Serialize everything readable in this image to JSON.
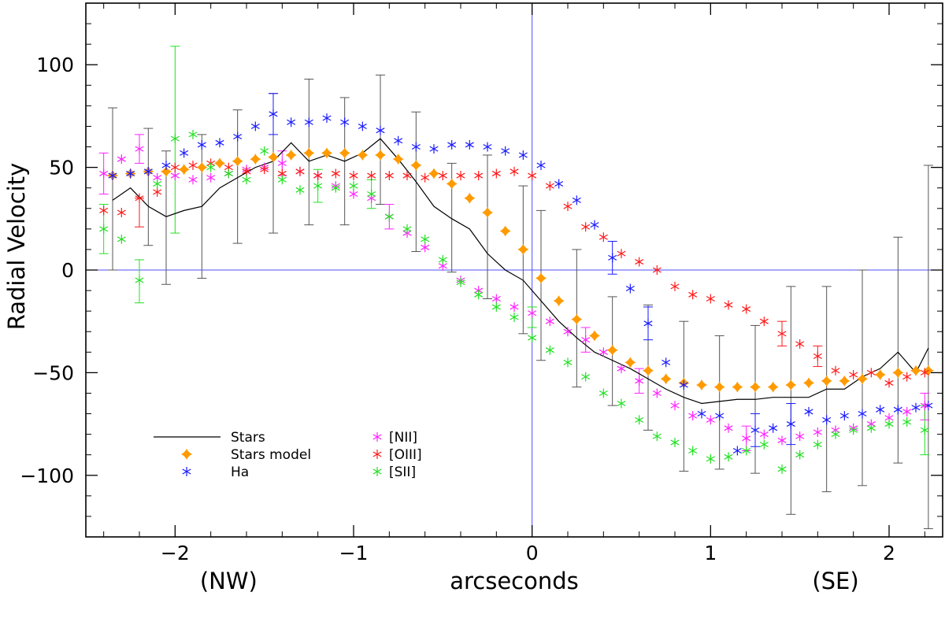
{
  "chart_data": {
    "type": "scatter",
    "title": "",
    "xlabel": "arcseconds",
    "ylabel": "Radial Velocity",
    "xlim": [
      -2.5,
      2.3
    ],
    "ylim": [
      -130,
      130
    ],
    "xticks": [
      -2,
      -1,
      0,
      1,
      2
    ],
    "xtick_labels": [
      "−2",
      "−1",
      "0",
      "1",
      "2"
    ],
    "yticks": [
      -100,
      -50,
      0,
      50,
      100
    ],
    "ytick_labels": [
      "−100",
      "−50",
      "0",
      "50",
      "100"
    ],
    "direction_labels": [
      {
        "text": "(NW)",
        "x": -1.7
      },
      {
        "text": "(SE)",
        "x": 1.7
      }
    ],
    "reference_lines": {
      "x": 0,
      "y": 0,
      "color": "#4f4fff"
    },
    "legend_position": "bottom-left",
    "series": [
      {
        "name": "Stars",
        "kind": "line",
        "color": "#000000",
        "x": [
          -2.35,
          -2.25,
          -2.15,
          -2.05,
          -1.95,
          -1.85,
          -1.75,
          -1.65,
          -1.55,
          -1.45,
          -1.35,
          -1.25,
          -1.15,
          -1.05,
          -0.95,
          -0.85,
          -0.75,
          -0.65,
          -0.55,
          -0.45,
          -0.35,
          -0.25,
          -0.15,
          -0.05,
          0.05,
          0.15,
          0.25,
          0.35,
          0.45,
          0.55,
          0.65,
          0.75,
          0.85,
          0.95,
          1.05,
          1.15,
          1.25,
          1.35,
          1.45,
          1.55,
          1.65,
          1.75,
          1.85,
          1.95,
          2.05,
          2.15,
          2.22
        ],
        "y": [
          34,
          40,
          31,
          26,
          29,
          31,
          40,
          45,
          50,
          53,
          62,
          53,
          56,
          53,
          57,
          64,
          54,
          43,
          31,
          25,
          20,
          8,
          0,
          -5,
          -15,
          -25,
          -33,
          -40,
          -44,
          -48,
          -53,
          -58,
          -62,
          -65,
          -64,
          -63,
          -63,
          -62,
          -62,
          -62,
          -58,
          -58,
          -52,
          -48,
          -40,
          -50,
          -38
        ],
        "error_bars": [
          {
            "x": -2.35,
            "lo": 0,
            "hi": 79
          },
          {
            "x": -2.15,
            "lo": 12,
            "hi": 69
          },
          {
            "x": -2.05,
            "lo": -7,
            "hi": 58
          },
          {
            "x": -1.85,
            "lo": -4,
            "hi": 66
          },
          {
            "x": -1.65,
            "lo": 13,
            "hi": 78
          },
          {
            "x": -1.45,
            "lo": 18,
            "hi": 86
          },
          {
            "x": -1.25,
            "lo": 22,
            "hi": 93
          },
          {
            "x": -1.05,
            "lo": 22,
            "hi": 84
          },
          {
            "x": -0.85,
            "lo": 32,
            "hi": 95
          },
          {
            "x": -0.65,
            "lo": 9,
            "hi": 77
          },
          {
            "x": -0.45,
            "lo": -1,
            "hi": 52
          },
          {
            "x": -0.25,
            "lo": -14,
            "hi": 56
          },
          {
            "x": -0.05,
            "lo": -31,
            "hi": 41
          },
          {
            "x": 0.05,
            "lo": -44,
            "hi": 29
          },
          {
            "x": 0.25,
            "lo": -57,
            "hi": 10
          },
          {
            "x": 0.45,
            "lo": -66,
            "hi": -13
          },
          {
            "x": 0.65,
            "lo": -78,
            "hi": -17
          },
          {
            "x": 0.85,
            "lo": -98,
            "hi": -25
          },
          {
            "x": 1.05,
            "lo": -97,
            "hi": -32
          },
          {
            "x": 1.25,
            "lo": -99,
            "hi": -27
          },
          {
            "x": 1.45,
            "lo": -119,
            "hi": -8
          },
          {
            "x": 1.65,
            "lo": -108,
            "hi": -8
          },
          {
            "x": 1.85,
            "lo": -105,
            "hi": 0
          },
          {
            "x": 2.05,
            "lo": -94,
            "hi": 16
          },
          {
            "x": 2.22,
            "lo": -126,
            "hi": 51
          }
        ]
      },
      {
        "name": "Stars model",
        "kind": "diamond",
        "color": "#ff9a00",
        "x": [
          -2.35,
          -2.25,
          -2.15,
          -2.05,
          -1.95,
          -1.85,
          -1.75,
          -1.65,
          -1.55,
          -1.45,
          -1.35,
          -1.25,
          -1.15,
          -1.05,
          -0.95,
          -0.85,
          -0.75,
          -0.65,
          -0.55,
          -0.45,
          -0.35,
          -0.25,
          -0.15,
          -0.05,
          0.05,
          0.15,
          0.25,
          0.35,
          0.45,
          0.55,
          0.65,
          0.75,
          0.85,
          0.95,
          1.05,
          1.15,
          1.25,
          1.35,
          1.45,
          1.55,
          1.65,
          1.75,
          1.85,
          1.95,
          2.05,
          2.15,
          2.22
        ],
        "y": [
          46,
          47,
          48,
          48,
          49,
          50,
          52,
          53,
          54,
          55,
          56,
          57,
          57,
          57,
          56,
          56,
          54,
          51,
          47,
          42,
          35,
          28,
          19,
          10,
          -4,
          -15,
          -24,
          -32,
          -39,
          -45,
          -49,
          -53,
          -55,
          -56,
          -57,
          -57,
          -57,
          -57,
          -56,
          -55,
          -54,
          -54,
          -53,
          -51,
          -50,
          -49,
          -49
        ]
      },
      {
        "name": "Ha",
        "kind": "asterisk",
        "color": "#1a1aff",
        "x": [
          -2.35,
          -2.25,
          -2.15,
          -2.05,
          -1.95,
          -1.85,
          -1.75,
          -1.65,
          -1.55,
          -1.45,
          -1.35,
          -1.25,
          -1.15,
          -1.05,
          -0.95,
          -0.85,
          -0.75,
          -0.65,
          -0.55,
          -0.45,
          -0.35,
          -0.25,
          -0.15,
          -0.05,
          0.05,
          0.15,
          0.25,
          0.35,
          0.45,
          0.55,
          0.65,
          0.75,
          0.85,
          0.95,
          1.05,
          1.15,
          1.25,
          1.35,
          1.45,
          1.55,
          1.65,
          1.75,
          1.85,
          1.95,
          2.05,
          2.15,
          2.22
        ],
        "y": [
          46,
          47,
          48,
          51,
          57,
          61,
          62,
          65,
          70,
          76,
          72,
          72,
          74,
          72,
          70,
          68,
          63,
          60,
          59,
          61,
          61,
          60,
          58,
          56,
          51,
          42,
          34,
          22,
          6,
          -9,
          -26,
          -45,
          -56,
          -70,
          -71,
          -88,
          -78,
          -77,
          -75,
          -69,
          -73,
          -71,
          -70,
          -68,
          -68,
          -67,
          -66
        ]
      },
      {
        "name": "[NII]",
        "kind": "asterisk",
        "color": "#ff22ff",
        "x": [
          -2.4,
          -2.3,
          -2.2,
          -2.1,
          -2.0,
          -1.9,
          -1.8,
          -1.7,
          -1.6,
          -1.5,
          -1.4,
          -1.3,
          -1.2,
          -1.1,
          -1.0,
          -0.9,
          -0.8,
          -0.7,
          -0.6,
          -0.5,
          -0.4,
          -0.3,
          -0.2,
          -0.1,
          0.0,
          0.1,
          0.2,
          0.3,
          0.4,
          0.5,
          0.6,
          0.7,
          0.8,
          0.9,
          1.0,
          1.1,
          1.2,
          1.3,
          1.4,
          1.5,
          1.6,
          1.7,
          1.8,
          1.9,
          2.0,
          2.1,
          2.2
        ],
        "y": [
          47,
          54,
          59,
          45,
          46,
          44,
          45,
          47,
          49,
          50,
          52,
          48,
          46,
          41,
          37,
          35,
          26,
          18,
          11,
          2,
          -5,
          -10,
          -14,
          -18,
          -21,
          -25,
          -30,
          -34,
          -40,
          -48,
          -54,
          -60,
          -66,
          -71,
          -73,
          -77,
          -82,
          -80,
          -83,
          -81,
          -79,
          -78,
          -77,
          -75,
          -72,
          -69,
          -66
        ]
      },
      {
        "name": "[OIII]",
        "kind": "asterisk",
        "color": "#ff1a1a",
        "x": [
          -2.4,
          -2.3,
          -2.2,
          -2.1,
          -2.0,
          -1.9,
          -1.8,
          -1.7,
          -1.6,
          -1.5,
          -1.4,
          -1.3,
          -1.2,
          -1.1,
          -1.0,
          -0.9,
          -0.8,
          -0.7,
          -0.6,
          -0.5,
          -0.4,
          -0.3,
          -0.2,
          -0.1,
          0.0,
          0.1,
          0.2,
          0.3,
          0.4,
          0.5,
          0.6,
          0.7,
          0.8,
          0.9,
          1.0,
          1.1,
          1.2,
          1.3,
          1.4,
          1.5,
          1.6,
          1.7,
          1.8,
          1.9,
          2.0,
          2.1,
          2.2
        ],
        "y": [
          29,
          28,
          35,
          38,
          50,
          51,
          52,
          50,
          48,
          49,
          47,
          48,
          46,
          47,
          46,
          46,
          46,
          46,
          45,
          46,
          46,
          46,
          47,
          48,
          46,
          41,
          31,
          21,
          16,
          8,
          4,
          0,
          -8,
          -12,
          -14,
          -17,
          -19,
          -25,
          -31,
          -36,
          -42,
          -49,
          -51,
          -50,
          -55,
          -52,
          -50
        ]
      },
      {
        "name": "[SII]",
        "kind": "asterisk",
        "color": "#22e022",
        "x": [
          -2.4,
          -2.3,
          -2.2,
          -2.1,
          -2.0,
          -1.9,
          -1.8,
          -1.7,
          -1.6,
          -1.5,
          -1.4,
          -1.3,
          -1.2,
          -1.1,
          -1.0,
          -0.9,
          -0.8,
          -0.7,
          -0.6,
          -0.5,
          -0.4,
          -0.3,
          -0.2,
          -0.1,
          0.0,
          0.1,
          0.2,
          0.3,
          0.4,
          0.5,
          0.6,
          0.7,
          0.8,
          0.9,
          1.0,
          1.1,
          1.2,
          1.3,
          1.4,
          1.5,
          1.6,
          1.7,
          1.8,
          1.9,
          2.0,
          2.1,
          2.2
        ],
        "y": [
          20,
          15,
          -5,
          42,
          64,
          66,
          50,
          47,
          44,
          58,
          44,
          39,
          41,
          40,
          41,
          37,
          26,
          20,
          15,
          5,
          -6,
          -12,
          -18,
          -23,
          -33,
          -39,
          -45,
          -52,
          -60,
          -65,
          -73,
          -81,
          -84,
          -88,
          -92,
          -91,
          -88,
          -85,
          -97,
          -90,
          -85,
          -80,
          -78,
          -77,
          -75,
          -74,
          -78
        ]
      }
    ],
    "error_bars_colored": [
      {
        "series": "[NII]",
        "x": -2.4,
        "lo": 37,
        "hi": 57
      },
      {
        "series": "[NII]",
        "x": -2.2,
        "lo": 52,
        "hi": 66
      },
      {
        "series": "[NII]",
        "x": -1.4,
        "lo": 46,
        "hi": 58
      },
      {
        "series": "[NII]",
        "x": -0.8,
        "lo": 20,
        "hi": 32
      },
      {
        "series": "[NII]",
        "x": 0.3,
        "lo": -40,
        "hi": -28
      },
      {
        "series": "[NII]",
        "x": 0.6,
        "lo": -60,
        "hi": -48
      },
      {
        "series": "[NII]",
        "x": 1.2,
        "lo": -88,
        "hi": -76
      },
      {
        "series": "[NII]",
        "x": 2.2,
        "lo": -73,
        "hi": -60
      },
      {
        "series": "[OIII]",
        "x": -2.2,
        "lo": 21,
        "hi": 35
      },
      {
        "series": "[OIII]",
        "x": 1.4,
        "lo": -37,
        "hi": -25
      },
      {
        "series": "[OIII]",
        "x": 1.6,
        "lo": -47,
        "hi": -37
      },
      {
        "series": "[SII]",
        "x": -2.4,
        "lo": 8,
        "hi": 32
      },
      {
        "series": "[SII]",
        "x": -2.2,
        "lo": -16,
        "hi": 5
      },
      {
        "series": "[SII]",
        "x": -2.0,
        "lo": 18,
        "hi": 109
      },
      {
        "series": "[SII]",
        "x": -1.2,
        "lo": 33,
        "hi": 49
      },
      {
        "series": "[SII]",
        "x": -0.9,
        "lo": 30,
        "hi": 44
      },
      {
        "series": "[SII]",
        "x": 0.0,
        "lo": -28,
        "hi": -18
      },
      {
        "series": "[SII]",
        "x": 2.2,
        "lo": -90,
        "hi": -66
      },
      {
        "series": "Ha",
        "x": -1.45,
        "lo": 66,
        "hi": 86
      },
      {
        "series": "Ha",
        "x": 0.45,
        "lo": -2,
        "hi": 14
      },
      {
        "series": "Ha",
        "x": 0.65,
        "lo": -34,
        "hi": -18
      },
      {
        "series": "Ha",
        "x": 1.25,
        "lo": -86,
        "hi": -70
      },
      {
        "series": "Ha",
        "x": 1.45,
        "lo": -85,
        "hi": -65
      }
    ],
    "legend": [
      {
        "label": "Stars",
        "series": "Stars"
      },
      {
        "label": "Stars model",
        "series": "Stars model"
      },
      {
        "label": "Ha",
        "series": "Ha"
      },
      {
        "label": "[NII]",
        "series": "[NII]"
      },
      {
        "label": "[OIII]",
        "series": "[OIII]"
      },
      {
        "label": "[SII]",
        "series": "[SII]"
      }
    ]
  }
}
